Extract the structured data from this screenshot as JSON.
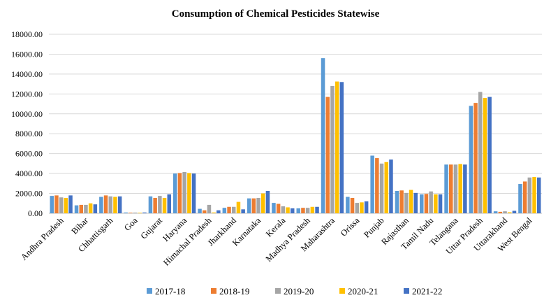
{
  "chart_data": {
    "type": "bar",
    "title": "Consumption of Chemical Pesticides Statewise",
    "xlabel": "",
    "ylabel": "",
    "ylim": [
      0,
      18000
    ],
    "yticks": [
      "0.00",
      "2000.00",
      "4000.00",
      "6000.00",
      "8000.00",
      "10000.00",
      "12000.00",
      "14000.00",
      "16000.00",
      "18000.00"
    ],
    "grid": true,
    "legend_position": "bottom",
    "categories": [
      "Andhra Pradesh",
      "Bihar",
      "Chhattisgarh",
      "Goa",
      "Gujarat",
      "Haryana",
      "Himachal Pradesh",
      "Jharkhand",
      "Karnataka",
      "Kerala",
      "Madhya Pradesh",
      "Maharashtra",
      "Orissa",
      "Punjab",
      "Rajasthan",
      "Tamil Nadu",
      "Telangana",
      "Uttar Pradesh",
      "Uttarakhand",
      "West Bengal"
    ],
    "series": [
      {
        "name": "2017-18",
        "color": "#5b9bd5",
        "values": [
          1750,
          800,
          1650,
          80,
          1700,
          4000,
          450,
          550,
          1500,
          1050,
          500,
          15600,
          1650,
          5800,
          2250,
          1900,
          4900,
          10800,
          200,
          2950
        ]
      },
      {
        "name": "2018-19",
        "color": "#ed7d31",
        "values": [
          1800,
          850,
          1800,
          60,
          1550,
          4050,
          300,
          650,
          1500,
          950,
          550,
          11700,
          1550,
          5550,
          2300,
          1950,
          4900,
          11100,
          150,
          3200
        ]
      },
      {
        "name": "2019-20",
        "color": "#a5a5a5",
        "values": [
          1600,
          850,
          1700,
          70,
          1750,
          4150,
          850,
          650,
          1550,
          700,
          550,
          12800,
          1050,
          5000,
          2050,
          2200,
          4900,
          12200,
          200,
          3600
        ]
      },
      {
        "name": "2020-21",
        "color": "#ffc000",
        "values": [
          1550,
          1000,
          1650,
          50,
          1550,
          4050,
          80,
          1150,
          2000,
          600,
          650,
          13250,
          1100,
          5150,
          2350,
          1900,
          4950,
          11600,
          100,
          3650
        ]
      },
      {
        "name": "2021-22",
        "color": "#4472c4",
        "values": [
          1800,
          900,
          1700,
          80,
          1900,
          4000,
          300,
          400,
          2250,
          500,
          650,
          13200,
          1200,
          5400,
          2050,
          1900,
          4900,
          11700,
          250,
          3600
        ]
      }
    ]
  }
}
